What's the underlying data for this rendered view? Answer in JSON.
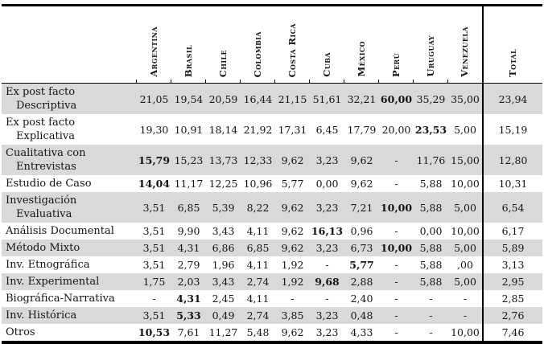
{
  "colors": {
    "stripe": "#d9d9d9",
    "border": "#000000",
    "background": "#ffffff"
  },
  "chart_data": {
    "type": "table",
    "columns": [
      "Argentina",
      "Brasil",
      "Chile",
      "Colombia",
      "Costa Rica",
      "Cuba",
      "México",
      "Perú",
      "Uruguay",
      "Venezuela",
      "Total"
    ],
    "rows": [
      {
        "label_lines": [
          "Ex post facto",
          "Descriptiva"
        ],
        "values": [
          "21,05",
          "19,54",
          "20,59",
          "16,44",
          "21,15",
          "51,61",
          "32,21",
          "60,00",
          "35,29",
          "35,00",
          "23,94"
        ],
        "bold": [
          7
        ]
      },
      {
        "label_lines": [
          "Ex post facto",
          "Explicativa"
        ],
        "values": [
          "19,30",
          "10,91",
          "18,14",
          "21,92",
          "17,31",
          "6,45",
          "17,79",
          "20,00",
          "23,53",
          "5,00",
          "15,19"
        ],
        "bold": [
          8
        ]
      },
      {
        "label_lines": [
          "Cualitativa con",
          "Entrevistas"
        ],
        "values": [
          "15,79",
          "15,23",
          "13,73",
          "12,33",
          "9,62",
          "3,23",
          "9,62",
          "-",
          "11,76",
          "15,00",
          "12,80"
        ],
        "bold": [
          0
        ]
      },
      {
        "label_lines": [
          "Estudio de Caso"
        ],
        "values": [
          "14,04",
          "11,17",
          "12,25",
          "10,96",
          "5,77",
          "0,00",
          "9,62",
          "-",
          "5,88",
          "10,00",
          "10,31"
        ],
        "bold": [
          0
        ]
      },
      {
        "label_lines": [
          "Investigación",
          "Evaluativa"
        ],
        "values": [
          "3,51",
          "6,85",
          "5,39",
          "8,22",
          "9,62",
          "3,23",
          "7,21",
          "10,00",
          "5,88",
          "5,00",
          "6,54"
        ],
        "bold": [
          7
        ]
      },
      {
        "label_lines": [
          "Análisis Documental"
        ],
        "values": [
          "3,51",
          "9,90",
          "3,43",
          "4,11",
          "9,62",
          "16,13",
          "0,96",
          "-",
          "0,00",
          "10,00",
          "6,17"
        ],
        "bold": [
          5
        ]
      },
      {
        "label_lines": [
          "Método Mixto"
        ],
        "values": [
          "3,51",
          "4,31",
          "6,86",
          "6,85",
          "9,62",
          "3,23",
          "6,73",
          "10,00",
          "5,88",
          "5,00",
          "5,89"
        ],
        "bold": [
          7
        ]
      },
      {
        "label_lines": [
          "Inv. Etnográfica"
        ],
        "values": [
          "3,51",
          "2,79",
          "1,96",
          "4,11",
          "1,92",
          "-",
          "5,77",
          "-",
          "5,88",
          ",00",
          "3,13"
        ],
        "bold": [
          6
        ]
      },
      {
        "label_lines": [
          "Inv. Experimental"
        ],
        "values": [
          "1,75",
          "2,03",
          "3,43",
          "2,74",
          "1,92",
          "9,68",
          "2,88",
          "-",
          "5,88",
          "5,00",
          "2,95"
        ],
        "bold": [
          5
        ]
      },
      {
        "label_lines": [
          "Biográfica-Narrativa"
        ],
        "values": [
          "-",
          "4,31",
          "2,45",
          "4,11",
          "-",
          "-",
          "2,40",
          "-",
          "-",
          "-",
          "2,85"
        ],
        "bold": [
          1
        ]
      },
      {
        "label_lines": [
          "Inv. Histórica"
        ],
        "values": [
          "3,51",
          "5,33",
          "0,49",
          "2,74",
          "3,85",
          "3,23",
          "0,48",
          "-",
          "-",
          "-",
          "2,76"
        ],
        "bold": [
          1
        ]
      },
      {
        "label_lines": [
          "Otros"
        ],
        "values": [
          "10,53",
          "7,61",
          "11,27",
          "5,48",
          "9,62",
          "3,23",
          "4,33",
          "-",
          "-",
          "10,00",
          "7,46"
        ],
        "bold": [
          0
        ]
      }
    ],
    "layout": {
      "header_orientation": "vertical",
      "stripe_rows": "odd rows shaded",
      "total_column_separator": true
    }
  }
}
